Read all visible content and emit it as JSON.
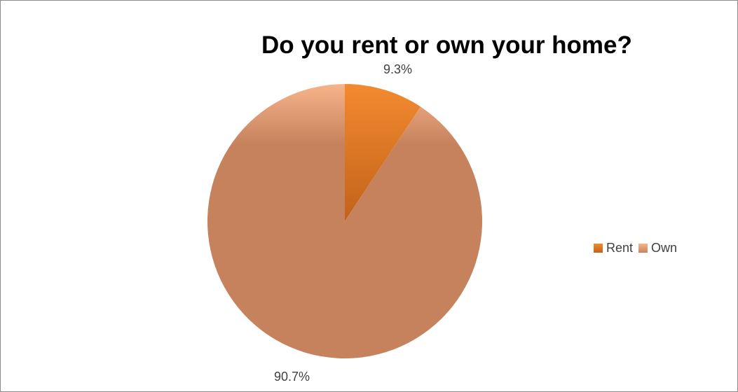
{
  "chart_data": {
    "type": "pie",
    "title": "Do you rent or own your home?",
    "slices": [
      {
        "label": "Rent",
        "value": 9.3,
        "data_label": "9.3%",
        "color_top": "#f28a2f",
        "color_bottom": "#c2621a"
      },
      {
        "label": "Own",
        "value": 90.7,
        "data_label": "90.7%",
        "color_top": "#f7b48a",
        "color_bottom": "#c6825d"
      }
    ],
    "legend_position": "right"
  }
}
